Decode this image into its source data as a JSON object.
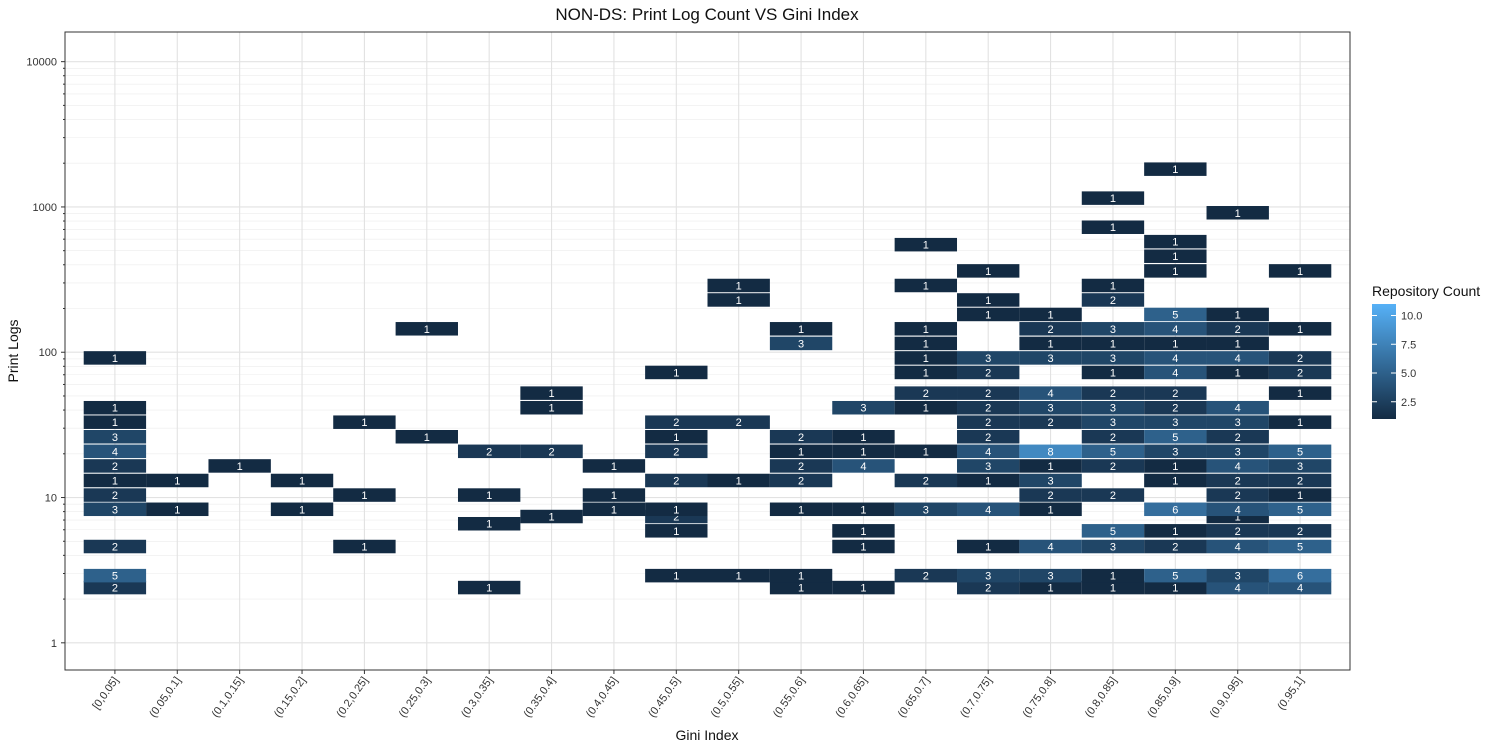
{
  "chart_data": {
    "type": "heatmap",
    "title": "NON-DS: Print Log Count VS Gini Index",
    "xlabel": "Gini Index",
    "ylabel": "Print Logs",
    "y_scale": "log10",
    "ylim": [
      0.65,
      16000
    ],
    "y_ticks": [
      1,
      10,
      100,
      1000,
      10000
    ],
    "y_tick_labels": [
      "1",
      "10",
      "100",
      "1000",
      "10000"
    ],
    "categories": [
      "[0,0.05]",
      "(0.05,0.1]",
      "(0.1,0.15]",
      "(0.15,0.2]",
      "(0.2,0.25]",
      "(0.25,0.3]",
      "(0.3,0.35]",
      "(0.35,0.4]",
      "(0.4,0.45]",
      "(0.45,0.5]",
      "(0.5,0.55]",
      "(0.55,0.6]",
      "(0.6,0.65]",
      "(0.65,0.7]",
      "(0.7,0.75]",
      "(0.75,0.8]",
      "(0.8,0.85]",
      "(0.85,0.9]",
      "(0.9,0.95]",
      "(0.95,1]"
    ],
    "legend": {
      "title": "Repository Count",
      "ticks": [
        2.5,
        5.0,
        7.5,
        10.0
      ],
      "tick_labels": [
        "2.5",
        "5.0",
        "7.5",
        "10.0"
      ],
      "range": [
        1,
        11
      ],
      "color_low": "#132b43",
      "color_high": "#56b1f7"
    },
    "cells": [
      {
        "x": 0,
        "y": 2.4,
        "count": 2
      },
      {
        "x": 0,
        "y": 2.9,
        "count": 5
      },
      {
        "x": 0,
        "y": 4.6,
        "count": 2
      },
      {
        "x": 0,
        "y": 8.3,
        "count": 3
      },
      {
        "x": 0,
        "y": 10.4,
        "count": 2
      },
      {
        "x": 0,
        "y": 13.1,
        "count": 1
      },
      {
        "x": 0,
        "y": 16.5,
        "count": 2
      },
      {
        "x": 0,
        "y": 20.8,
        "count": 4
      },
      {
        "x": 0,
        "y": 26.2,
        "count": 3
      },
      {
        "x": 0,
        "y": 33.0,
        "count": 1
      },
      {
        "x": 0,
        "y": 41.5,
        "count": 1
      },
      {
        "x": 0,
        "y": 91.4,
        "count": 1
      },
      {
        "x": 1,
        "y": 8.3,
        "count": 1
      },
      {
        "x": 1,
        "y": 13.1,
        "count": 1
      },
      {
        "x": 2,
        "y": 16.5,
        "count": 1
      },
      {
        "x": 3,
        "y": 8.3,
        "count": 1
      },
      {
        "x": 3,
        "y": 13.1,
        "count": 1
      },
      {
        "x": 4,
        "y": 4.6,
        "count": 1
      },
      {
        "x": 4,
        "y": 10.4,
        "count": 1
      },
      {
        "x": 4,
        "y": 33.0,
        "count": 1
      },
      {
        "x": 5,
        "y": 26.2,
        "count": 1
      },
      {
        "x": 5,
        "y": 145,
        "count": 1
      },
      {
        "x": 6,
        "y": 2.4,
        "count": 1
      },
      {
        "x": 6,
        "y": 6.6,
        "count": 1
      },
      {
        "x": 6,
        "y": 10.4,
        "count": 1
      },
      {
        "x": 6,
        "y": 20.8,
        "count": 2
      },
      {
        "x": 7,
        "y": 7.4,
        "count": 1
      },
      {
        "x": 7,
        "y": 20.8,
        "count": 2
      },
      {
        "x": 7,
        "y": 41.5,
        "count": 1
      },
      {
        "x": 7,
        "y": 52.3,
        "count": 1
      },
      {
        "x": 8,
        "y": 8.3,
        "count": 1
      },
      {
        "x": 8,
        "y": 10.4,
        "count": 1
      },
      {
        "x": 8,
        "y": 16.5,
        "count": 1
      },
      {
        "x": 9,
        "y": 2.9,
        "count": 1
      },
      {
        "x": 9,
        "y": 5.9,
        "count": 1
      },
      {
        "x": 9,
        "y": 7.4,
        "count": 2
      },
      {
        "x": 9,
        "y": 8.3,
        "count": 1
      },
      {
        "x": 9,
        "y": 13.1,
        "count": 2
      },
      {
        "x": 9,
        "y": 20.8,
        "count": 2
      },
      {
        "x": 9,
        "y": 26.2,
        "count": 1
      },
      {
        "x": 9,
        "y": 33.0,
        "count": 2
      },
      {
        "x": 9,
        "y": 72.6,
        "count": 1
      },
      {
        "x": 10,
        "y": 2.9,
        "count": 1
      },
      {
        "x": 10,
        "y": 13.1,
        "count": 1
      },
      {
        "x": 10,
        "y": 33.0,
        "count": 2
      },
      {
        "x": 10,
        "y": 229,
        "count": 1
      },
      {
        "x": 10,
        "y": 288,
        "count": 1
      },
      {
        "x": 11,
        "y": 2.4,
        "count": 1
      },
      {
        "x": 11,
        "y": 2.9,
        "count": 1
      },
      {
        "x": 11,
        "y": 8.3,
        "count": 1
      },
      {
        "x": 11,
        "y": 13.1,
        "count": 2
      },
      {
        "x": 11,
        "y": 16.5,
        "count": 2
      },
      {
        "x": 11,
        "y": 20.8,
        "count": 1
      },
      {
        "x": 11,
        "y": 26.2,
        "count": 2
      },
      {
        "x": 11,
        "y": 115,
        "count": 3
      },
      {
        "x": 11,
        "y": 145,
        "count": 1
      },
      {
        "x": 12,
        "y": 2.4,
        "count": 1
      },
      {
        "x": 12,
        "y": 4.6,
        "count": 1
      },
      {
        "x": 12,
        "y": 5.9,
        "count": 1
      },
      {
        "x": 12,
        "y": 8.3,
        "count": 1
      },
      {
        "x": 12,
        "y": 16.5,
        "count": 4
      },
      {
        "x": 12,
        "y": 20.8,
        "count": 1
      },
      {
        "x": 12,
        "y": 26.2,
        "count": 1
      },
      {
        "x": 12,
        "y": 41.5,
        "count": 3
      },
      {
        "x": 13,
        "y": 2.9,
        "count": 2
      },
      {
        "x": 13,
        "y": 8.3,
        "count": 3
      },
      {
        "x": 13,
        "y": 13.1,
        "count": 2
      },
      {
        "x": 13,
        "y": 20.8,
        "count": 1
      },
      {
        "x": 13,
        "y": 41.5,
        "count": 1
      },
      {
        "x": 13,
        "y": 52.3,
        "count": 2
      },
      {
        "x": 13,
        "y": 72.6,
        "count": 1
      },
      {
        "x": 13,
        "y": 91.4,
        "count": 1
      },
      {
        "x": 13,
        "y": 115,
        "count": 1
      },
      {
        "x": 13,
        "y": 145,
        "count": 1
      },
      {
        "x": 13,
        "y": 288,
        "count": 1
      },
      {
        "x": 13,
        "y": 550,
        "count": 1
      },
      {
        "x": 14,
        "y": 2.4,
        "count": 2
      },
      {
        "x": 14,
        "y": 2.9,
        "count": 3
      },
      {
        "x": 14,
        "y": 4.6,
        "count": 1
      },
      {
        "x": 14,
        "y": 8.3,
        "count": 4
      },
      {
        "x": 14,
        "y": 13.1,
        "count": 1
      },
      {
        "x": 14,
        "y": 16.5,
        "count": 3
      },
      {
        "x": 14,
        "y": 20.8,
        "count": 4
      },
      {
        "x": 14,
        "y": 26.2,
        "count": 2
      },
      {
        "x": 14,
        "y": 33.0,
        "count": 2
      },
      {
        "x": 14,
        "y": 41.5,
        "count": 2
      },
      {
        "x": 14,
        "y": 52.3,
        "count": 2
      },
      {
        "x": 14,
        "y": 72.6,
        "count": 2
      },
      {
        "x": 14,
        "y": 91.4,
        "count": 3
      },
      {
        "x": 14,
        "y": 182,
        "count": 1
      },
      {
        "x": 14,
        "y": 229,
        "count": 1
      },
      {
        "x": 14,
        "y": 363,
        "count": 1
      },
      {
        "x": 15,
        "y": 2.4,
        "count": 1
      },
      {
        "x": 15,
        "y": 2.9,
        "count": 3
      },
      {
        "x": 15,
        "y": 4.6,
        "count": 4
      },
      {
        "x": 15,
        "y": 8.3,
        "count": 1
      },
      {
        "x": 15,
        "y": 10.4,
        "count": 2
      },
      {
        "x": 15,
        "y": 13.1,
        "count": 3
      },
      {
        "x": 15,
        "y": 16.5,
        "count": 1
      },
      {
        "x": 15,
        "y": 20.8,
        "count": 8
      },
      {
        "x": 15,
        "y": 33.0,
        "count": 2
      },
      {
        "x": 15,
        "y": 41.5,
        "count": 3
      },
      {
        "x": 15,
        "y": 52.3,
        "count": 4
      },
      {
        "x": 15,
        "y": 91.4,
        "count": 3
      },
      {
        "x": 15,
        "y": 115,
        "count": 1
      },
      {
        "x": 15,
        "y": 145,
        "count": 2
      },
      {
        "x": 15,
        "y": 182,
        "count": 1
      },
      {
        "x": 16,
        "y": 2.4,
        "count": 1
      },
      {
        "x": 16,
        "y": 2.9,
        "count": 1
      },
      {
        "x": 16,
        "y": 4.6,
        "count": 3
      },
      {
        "x": 16,
        "y": 5.9,
        "count": 5
      },
      {
        "x": 16,
        "y": 10.4,
        "count": 2
      },
      {
        "x": 16,
        "y": 16.5,
        "count": 2
      },
      {
        "x": 16,
        "y": 20.8,
        "count": 5
      },
      {
        "x": 16,
        "y": 26.2,
        "count": 2
      },
      {
        "x": 16,
        "y": 33.0,
        "count": 3
      },
      {
        "x": 16,
        "y": 41.5,
        "count": 3
      },
      {
        "x": 16,
        "y": 52.3,
        "count": 2
      },
      {
        "x": 16,
        "y": 72.6,
        "count": 1
      },
      {
        "x": 16,
        "y": 91.4,
        "count": 3
      },
      {
        "x": 16,
        "y": 115,
        "count": 1
      },
      {
        "x": 16,
        "y": 145,
        "count": 3
      },
      {
        "x": 16,
        "y": 229,
        "count": 2
      },
      {
        "x": 16,
        "y": 288,
        "count": 1
      },
      {
        "x": 16,
        "y": 725,
        "count": 1
      },
      {
        "x": 16,
        "y": 1150,
        "count": 1
      },
      {
        "x": 17,
        "y": 2.4,
        "count": 1
      },
      {
        "x": 17,
        "y": 2.9,
        "count": 5
      },
      {
        "x": 17,
        "y": 4.6,
        "count": 2
      },
      {
        "x": 17,
        "y": 5.9,
        "count": 1
      },
      {
        "x": 17,
        "y": 8.3,
        "count": 6
      },
      {
        "x": 17,
        "y": 13.1,
        "count": 1
      },
      {
        "x": 17,
        "y": 16.5,
        "count": 1
      },
      {
        "x": 17,
        "y": 20.8,
        "count": 3
      },
      {
        "x": 17,
        "y": 26.2,
        "count": 5
      },
      {
        "x": 17,
        "y": 33.0,
        "count": 3
      },
      {
        "x": 17,
        "y": 41.5,
        "count": 2
      },
      {
        "x": 17,
        "y": 52.3,
        "count": 2
      },
      {
        "x": 17,
        "y": 72.6,
        "count": 4
      },
      {
        "x": 17,
        "y": 91.4,
        "count": 4
      },
      {
        "x": 17,
        "y": 115,
        "count": 1
      },
      {
        "x": 17,
        "y": 145,
        "count": 4
      },
      {
        "x": 17,
        "y": 182,
        "count": 5
      },
      {
        "x": 17,
        "y": 363,
        "count": 1
      },
      {
        "x": 17,
        "y": 458,
        "count": 1
      },
      {
        "x": 17,
        "y": 577,
        "count": 1
      },
      {
        "x": 17,
        "y": 1820,
        "count": 1
      },
      {
        "x": 18,
        "y": 2.4,
        "count": 4
      },
      {
        "x": 18,
        "y": 2.9,
        "count": 3
      },
      {
        "x": 18,
        "y": 4.6,
        "count": 4
      },
      {
        "x": 18,
        "y": 5.9,
        "count": 2
      },
      {
        "x": 18,
        "y": 7.4,
        "count": 1
      },
      {
        "x": 18,
        "y": 8.3,
        "count": 4
      },
      {
        "x": 18,
        "y": 10.4,
        "count": 2
      },
      {
        "x": 18,
        "y": 13.1,
        "count": 2
      },
      {
        "x": 18,
        "y": 16.5,
        "count": 4
      },
      {
        "x": 18,
        "y": 20.8,
        "count": 3
      },
      {
        "x": 18,
        "y": 26.2,
        "count": 2
      },
      {
        "x": 18,
        "y": 33.0,
        "count": 3
      },
      {
        "x": 18,
        "y": 41.5,
        "count": 4
      },
      {
        "x": 18,
        "y": 72.6,
        "count": 1
      },
      {
        "x": 18,
        "y": 91.4,
        "count": 4
      },
      {
        "x": 18,
        "y": 115,
        "count": 1
      },
      {
        "x": 18,
        "y": 145,
        "count": 2
      },
      {
        "x": 18,
        "y": 182,
        "count": 1
      },
      {
        "x": 18,
        "y": 912,
        "count": 1
      },
      {
        "x": 19,
        "y": 2.4,
        "count": 4
      },
      {
        "x": 19,
        "y": 2.9,
        "count": 6
      },
      {
        "x": 19,
        "y": 4.6,
        "count": 5
      },
      {
        "x": 19,
        "y": 5.9,
        "count": 2
      },
      {
        "x": 19,
        "y": 8.3,
        "count": 5
      },
      {
        "x": 19,
        "y": 10.4,
        "count": 1
      },
      {
        "x": 19,
        "y": 13.1,
        "count": 2
      },
      {
        "x": 19,
        "y": 16.5,
        "count": 3
      },
      {
        "x": 19,
        "y": 20.8,
        "count": 5
      },
      {
        "x": 19,
        "y": 33.0,
        "count": 1
      },
      {
        "x": 19,
        "y": 52.3,
        "count": 1
      },
      {
        "x": 19,
        "y": 72.6,
        "count": 2
      },
      {
        "x": 19,
        "y": 91.4,
        "count": 2
      },
      {
        "x": 19,
        "y": 145,
        "count": 1
      },
      {
        "x": 19,
        "y": 363,
        "count": 1
      }
    ]
  }
}
